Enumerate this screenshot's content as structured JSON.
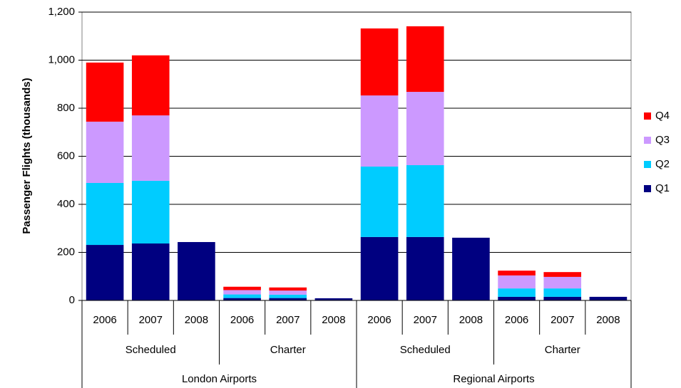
{
  "chart_data": {
    "type": "stacked_bar",
    "y_label": "Passenger Flights (thousands)",
    "categories": [
      "2006",
      "2007",
      "2008",
      "2006",
      "2007",
      "2008",
      "2006",
      "2007",
      "2008",
      "2006",
      "2007",
      "2008"
    ],
    "category_groups": [
      {
        "name": "London Airports",
        "subgroups": [
          "Scheduled",
          "Charter"
        ]
      },
      {
        "name": "Regional Airports",
        "subgroups": [
          "Scheduled",
          "Charter"
        ]
      }
    ],
    "series": [
      {
        "name": "Q1",
        "color": "#000080",
        "values": [
          231,
          237,
          243,
          10,
          10,
          9,
          264,
          264,
          261,
          15,
          15,
          15
        ]
      },
      {
        "name": "Q2",
        "color": "#00ccff",
        "values": [
          258,
          261,
          null,
          15,
          14,
          null,
          293,
          299,
          null,
          35,
          35,
          null
        ]
      },
      {
        "name": "Q3",
        "color": "#cc99ff",
        "values": [
          255,
          272,
          null,
          18,
          17,
          null,
          296,
          305,
          null,
          54,
          48,
          null
        ]
      },
      {
        "name": "Q4",
        "color": "#ff0000",
        "values": [
          246,
          250,
          null,
          14,
          13,
          null,
          279,
          273,
          null,
          20,
          20,
          null
        ]
      }
    ],
    "ylim": [
      0,
      1200
    ],
    "yticks": [
      0,
      200,
      400,
      600,
      800,
      {
        "value": 1000,
        "label": "1,000"
      },
      {
        "value": 1200,
        "label": "1,200"
      }
    ],
    "grid": true,
    "legend": "right"
  }
}
